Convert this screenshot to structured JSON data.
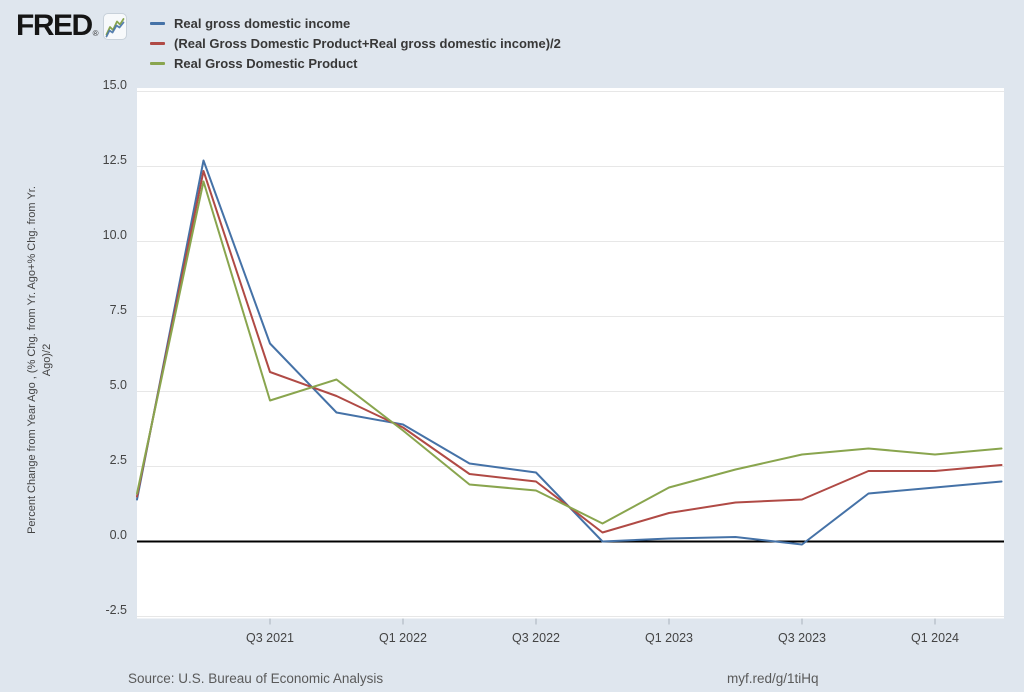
{
  "logo": {
    "text": "FRED",
    "registered_mark": "®"
  },
  "y_axis": {
    "title_line1": "Percent Change from Year Ago , (% Chg. from Yr. Ago+% Chg. from Yr.",
    "title_line2": "Ago)/2"
  },
  "footer": {
    "source": "Source: U.S. Bureau of Economic Analysis",
    "short_url": "myf.red/g/1tiHq"
  },
  "chart_data": {
    "type": "line",
    "title": "",
    "xlabel": "",
    "ylabel": "Percent Change from Year Ago , (% Chg. from Yr. Ago+% Chg. from Yr. Ago)/2",
    "ylim": [
      -2.5,
      15.0
    ],
    "grid": "horizontal-only",
    "zero_line": true,
    "legend_position": "top-left",
    "plot_background": "#ffffff",
    "page_background": "#dfe6ee",
    "y_ticks": [
      15.0,
      12.5,
      10.0,
      7.5,
      5.0,
      2.5,
      0.0,
      -2.5
    ],
    "y_tick_labels": [
      "15.0",
      "12.5",
      "10.0",
      "7.5",
      "5.0",
      "2.5",
      "0.0",
      "-2.5"
    ],
    "categories": [
      "Q1 2021",
      "Q2 2021",
      "Q3 2021",
      "Q4 2021",
      "Q1 2022",
      "Q2 2022",
      "Q3 2022",
      "Q4 2022",
      "Q1 2023",
      "Q2 2023",
      "Q3 2023",
      "Q4 2023",
      "Q1 2024",
      "Q2 2024"
    ],
    "x_tick_labels": [
      "Q3 2021",
      "Q1 2022",
      "Q3 2022",
      "Q1 2023",
      "Q3 2023",
      "Q1 2024"
    ],
    "x_tick_indices": [
      2,
      4,
      6,
      8,
      10,
      12
    ],
    "series": [
      {
        "name": "Real gross domestic income",
        "color": "#4572a7",
        "values": [
          1.4,
          12.7,
          6.6,
          4.3,
          3.9,
          2.6,
          2.3,
          0.0,
          0.1,
          0.15,
          -0.1,
          1.6,
          1.8,
          2.0
        ]
      },
      {
        "name": "(Real Gross Domestic Product+Real gross domestic income)/2",
        "color": "#b04a45",
        "values": [
          1.5,
          12.35,
          5.65,
          4.85,
          3.8,
          2.25,
          2.0,
          0.3,
          0.95,
          1.3,
          1.4,
          2.35,
          2.35,
          2.55
        ]
      },
      {
        "name": "Real Gross Domestic Product",
        "color": "#89a54e",
        "values": [
          1.6,
          12.0,
          4.7,
          5.4,
          3.7,
          1.9,
          1.7,
          0.6,
          1.8,
          2.4,
          2.9,
          3.1,
          2.9,
          3.1
        ]
      }
    ],
    "source": "U.S. Bureau of Economic Analysis"
  }
}
